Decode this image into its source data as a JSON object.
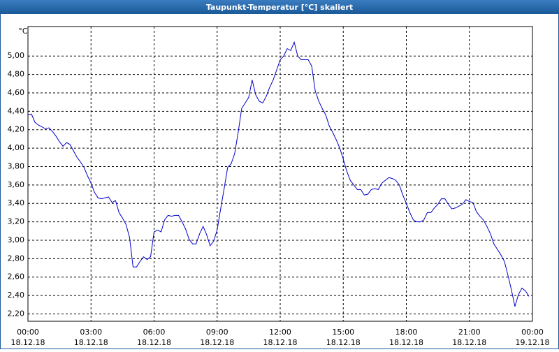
{
  "chart_data": {
    "type": "line",
    "title": "Taupunkt-Temperatur [°C] skaliert",
    "y_unit": "°C",
    "x": [
      0,
      10,
      20,
      30,
      40,
      50,
      60,
      70,
      80,
      90,
      100,
      110,
      120,
      130,
      140,
      150,
      160,
      170,
      180,
      190,
      200,
      210,
      220,
      230,
      240,
      250,
      260,
      270,
      280,
      290,
      300,
      310,
      320,
      330,
      340,
      350,
      360,
      370,
      380,
      390,
      400,
      410,
      420,
      430,
      440,
      450,
      460,
      470,
      480,
      490,
      500,
      510,
      520,
      530,
      540,
      550,
      560,
      570,
      580,
      590,
      600,
      610,
      620,
      630,
      640,
      650,
      660,
      670,
      680,
      690,
      700,
      710,
      720,
      730,
      740,
      750,
      760,
      770,
      780,
      790,
      800,
      810,
      820,
      830,
      840,
      850,
      860,
      870,
      880,
      890,
      900,
      910,
      920,
      930,
      940,
      950,
      960,
      970,
      980,
      990,
      1000,
      1010,
      1020,
      1030,
      1040,
      1050,
      1060,
      1070,
      1080,
      1090,
      1100,
      1110,
      1120,
      1130,
      1140,
      1150,
      1160,
      1170,
      1180,
      1190,
      1200,
      1210,
      1220,
      1230,
      1240,
      1250,
      1260,
      1270,
      1280,
      1290,
      1300,
      1310,
      1320,
      1330,
      1340,
      1350,
      1360,
      1370,
      1380,
      1390,
      1400,
      1410,
      1420,
      1430
    ],
    "series": [
      {
        "color": "#0000c8",
        "values": [
          4.36,
          4.37,
          4.28,
          4.25,
          4.23,
          4.21,
          4.22,
          4.18,
          4.13,
          4.07,
          4.02,
          4.06,
          4.04,
          3.97,
          3.9,
          3.85,
          3.79,
          3.7,
          3.62,
          3.52,
          3.46,
          3.45,
          3.46,
          3.47,
          3.41,
          3.43,
          3.3,
          3.24,
          3.17,
          3.03,
          2.71,
          2.71,
          2.77,
          2.82,
          2.79,
          2.82,
          3.09,
          3.11,
          3.09,
          3.22,
          3.27,
          3.26,
          3.27,
          3.27,
          3.2,
          3.12,
          3.01,
          2.96,
          2.96,
          3.07,
          3.15,
          3.06,
          2.94,
          2.99,
          3.11,
          3.34,
          3.56,
          3.79,
          3.83,
          3.94,
          4.17,
          4.43,
          4.49,
          4.55,
          4.74,
          4.58,
          4.51,
          4.49,
          4.56,
          4.66,
          4.74,
          4.85,
          4.96,
          5.0,
          5.08,
          5.06,
          5.15,
          5.0,
          4.96,
          4.96,
          4.96,
          4.89,
          4.62,
          4.51,
          4.43,
          4.36,
          4.24,
          4.17,
          4.09,
          4.0,
          3.88,
          3.75,
          3.65,
          3.6,
          3.55,
          3.55,
          3.49,
          3.5,
          3.55,
          3.56,
          3.55,
          3.62,
          3.65,
          3.68,
          3.67,
          3.65,
          3.6,
          3.49,
          3.4,
          3.3,
          3.22,
          3.2,
          3.2,
          3.22,
          3.3,
          3.3,
          3.35,
          3.39,
          3.45,
          3.45,
          3.39,
          3.34,
          3.35,
          3.37,
          3.39,
          3.44,
          3.42,
          3.41,
          3.31,
          3.26,
          3.22,
          3.15,
          3.07,
          2.96,
          2.9,
          2.84,
          2.77,
          2.62,
          2.46,
          2.28,
          2.41,
          2.48,
          2.45,
          2.39
        ]
      }
    ],
    "xlim": [
      0,
      1440
    ],
    "xticks": [
      {
        "value": 0,
        "label": "00:00"
      },
      {
        "value": 180,
        "label": "03:00"
      },
      {
        "value": 360,
        "label": "06:00"
      },
      {
        "value": 540,
        "label": "09:00"
      },
      {
        "value": 720,
        "label": "12:00"
      },
      {
        "value": 900,
        "label": "15:00"
      },
      {
        "value": 1080,
        "label": "18:00"
      },
      {
        "value": 1260,
        "label": "21:00"
      },
      {
        "value": 1440,
        "label": "00:00"
      }
    ],
    "xtick_dates": [
      "18.12.18",
      "18.12.18",
      "18.12.18",
      "18.12.18",
      "18.12.18",
      "18.12.18",
      "18.12.18",
      "18.12.18",
      "19.12.18"
    ],
    "ylim": [
      2.12,
      5.32
    ],
    "yticks": [
      {
        "value": 2.2,
        "label": "2,20"
      },
      {
        "value": 2.4,
        "label": "2,40"
      },
      {
        "value": 2.6,
        "label": "2,60"
      },
      {
        "value": 2.8,
        "label": "2,80"
      },
      {
        "value": 3.0,
        "label": "3,00"
      },
      {
        "value": 3.2,
        "label": "3,20"
      },
      {
        "value": 3.4,
        "label": "3,40"
      },
      {
        "value": 3.6,
        "label": "3,60"
      },
      {
        "value": 3.8,
        "label": "3,80"
      },
      {
        "value": 4.0,
        "label": "4,00"
      },
      {
        "value": 4.2,
        "label": "4,20"
      },
      {
        "value": 4.4,
        "label": "4,40"
      },
      {
        "value": 4.6,
        "label": "4,60"
      },
      {
        "value": 4.8,
        "label": "4,80"
      },
      {
        "value": 5.0,
        "label": "5,00"
      }
    ],
    "grid": true
  }
}
